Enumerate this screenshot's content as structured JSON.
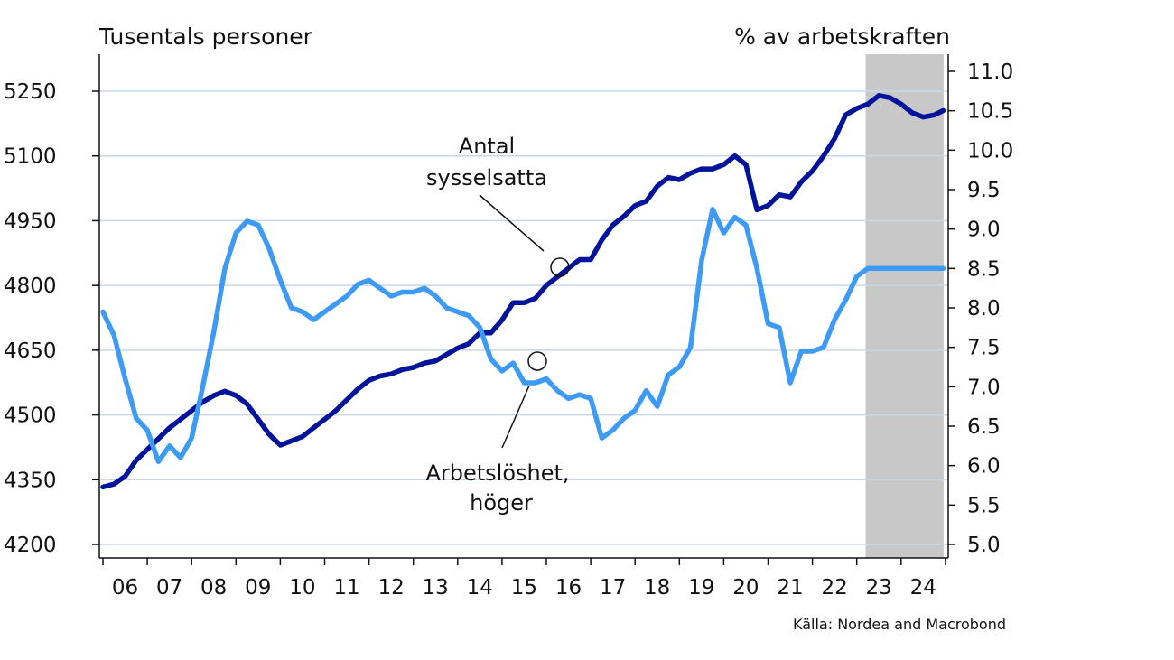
{
  "chart_data": {
    "type": "line",
    "left_axis_title": "Tusentals personer",
    "right_axis_title": "% av arbetskraften",
    "source": "Källa: Nordea and Macrobond",
    "x_ticks": [
      "06",
      "07",
      "08",
      "09",
      "10",
      "11",
      "12",
      "13",
      "14",
      "15",
      "16",
      "17",
      "18",
      "19",
      "20",
      "21",
      "22",
      "23",
      "24"
    ],
    "x_range": [
      2005.95,
      2025.0
    ],
    "left_ylim": [
      4200,
      5300
    ],
    "left_ticks": [
      4200,
      4350,
      4500,
      4650,
      4800,
      4950,
      5100,
      5250
    ],
    "right_ylim": [
      5.0,
      11.0
    ],
    "right_ticks": [
      "5.0",
      "5.5",
      "6.0",
      "6.5",
      "7.0",
      "7.5",
      "8.0",
      "8.5",
      "9.0",
      "9.5",
      "10.0",
      "10.5",
      "11.0"
    ],
    "shaded_region": {
      "from": 2023.2,
      "to": 2025.0,
      "color": "#c8c8c8"
    },
    "series": [
      {
        "name": "Antal sysselsatta",
        "axis": "left",
        "color": "#00149b",
        "x": [
          2006.0,
          2006.25,
          2006.5,
          2006.75,
          2007.0,
          2007.25,
          2007.5,
          2007.75,
          2008.0,
          2008.25,
          2008.5,
          2008.75,
          2009.0,
          2009.25,
          2009.5,
          2009.75,
          2010.0,
          2010.25,
          2010.5,
          2010.75,
          2011.0,
          2011.25,
          2011.5,
          2011.75,
          2012.0,
          2012.25,
          2012.5,
          2012.75,
          2013.0,
          2013.25,
          2013.5,
          2013.75,
          2014.0,
          2014.25,
          2014.5,
          2014.75,
          2015.0,
          2015.25,
          2015.5,
          2015.75,
          2016.0,
          2016.25,
          2016.5,
          2016.75,
          2017.0,
          2017.25,
          2017.5,
          2017.75,
          2018.0,
          2018.25,
          2018.5,
          2018.75,
          2019.0,
          2019.25,
          2019.5,
          2019.75,
          2020.0,
          2020.25,
          2020.5,
          2020.75,
          2021.0,
          2021.25,
          2021.5,
          2021.75,
          2022.0,
          2022.25,
          2022.5,
          2022.75,
          2023.0,
          2023.25,
          2023.5,
          2023.75,
          2024.0,
          2024.25,
          2024.5,
          2024.75,
          2024.95
        ],
        "values": [
          4333,
          4340,
          4358,
          4395,
          4420,
          4445,
          4470,
          4490,
          4510,
          4530,
          4545,
          4555,
          4545,
          4525,
          4490,
          4455,
          4430,
          4440,
          4450,
          4470,
          4490,
          4510,
          4535,
          4560,
          4580,
          4590,
          4595,
          4605,
          4610,
          4620,
          4625,
          4640,
          4655,
          4665,
          4690,
          4690,
          4720,
          4760,
          4760,
          4770,
          4800,
          4820,
          4840,
          4860,
          4860,
          4905,
          4940,
          4960,
          4985,
          4995,
          5030,
          5050,
          5045,
          5060,
          5070,
          5070,
          5080,
          5100,
          5080,
          4975,
          4985,
          5010,
          5005,
          5040,
          5065,
          5100,
          5140,
          5195,
          5210,
          5220,
          5240,
          5235,
          5220,
          5200,
          5190,
          5195,
          5205
        ]
      },
      {
        "name": "Arbetslöshet, höger",
        "axis": "right",
        "color": "#3d9bf5",
        "x": [
          2006.0,
          2006.25,
          2006.5,
          2006.75,
          2007.0,
          2007.25,
          2007.5,
          2007.75,
          2008.0,
          2008.25,
          2008.5,
          2008.75,
          2009.0,
          2009.25,
          2009.5,
          2009.75,
          2010.0,
          2010.25,
          2010.5,
          2010.75,
          2011.0,
          2011.25,
          2011.5,
          2011.75,
          2012.0,
          2012.25,
          2012.5,
          2012.75,
          2013.0,
          2013.25,
          2013.5,
          2013.75,
          2014.0,
          2014.25,
          2014.5,
          2014.75,
          2015.0,
          2015.25,
          2015.5,
          2015.75,
          2016.0,
          2016.25,
          2016.5,
          2016.75,
          2017.0,
          2017.25,
          2017.5,
          2017.75,
          2018.0,
          2018.25,
          2018.5,
          2018.75,
          2019.0,
          2019.25,
          2019.5,
          2019.75,
          2020.0,
          2020.25,
          2020.5,
          2020.75,
          2021.0,
          2021.25,
          2021.5,
          2021.75,
          2022.0,
          2022.25,
          2022.5,
          2022.75,
          2023.0,
          2023.25,
          2023.5,
          2023.75,
          2024.0,
          2024.25,
          2024.5,
          2024.75,
          2024.95
        ],
        "values": [
          7.95,
          7.65,
          7.1,
          6.6,
          6.45,
          6.05,
          6.25,
          6.1,
          6.35,
          7.0,
          7.7,
          8.5,
          8.95,
          9.1,
          9.05,
          8.75,
          8.35,
          8.0,
          7.95,
          7.85,
          7.95,
          8.05,
          8.15,
          8.3,
          8.35,
          8.25,
          8.15,
          8.2,
          8.2,
          8.25,
          8.15,
          8.0,
          7.95,
          7.9,
          7.75,
          7.35,
          7.2,
          7.3,
          7.05,
          7.05,
          7.1,
          6.95,
          6.85,
          6.9,
          6.85,
          6.35,
          6.45,
          6.6,
          6.7,
          6.95,
          6.75,
          7.15,
          7.25,
          7.5,
          8.6,
          9.25,
          8.95,
          9.15,
          9.05,
          8.5,
          7.8,
          7.75,
          7.05,
          7.45,
          7.45,
          7.5,
          7.85,
          8.1,
          8.4,
          8.5,
          8.5,
          8.5,
          8.5,
          8.5,
          8.5,
          8.5,
          8.5
        ]
      }
    ],
    "annotations": [
      {
        "lines": [
          "Antal",
          "sysselsatta"
        ]
      },
      {
        "lines": [
          "Arbetslöshet,",
          "höger"
        ]
      }
    ]
  }
}
